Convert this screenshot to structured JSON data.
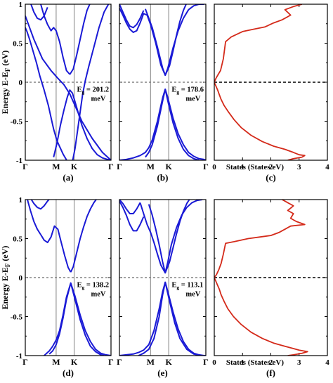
{
  "figure": {
    "ylabel": "Energy E-E",
    "ylabel_sub": "F",
    "ylabel_unit": "(eV)",
    "ylim": [
      -1,
      1
    ],
    "y_ticks": [
      "1",
      "0.5",
      "0",
      "-0.5",
      "-1"
    ],
    "k_ticks": [
      "Γ",
      "M",
      "K",
      "Γ"
    ],
    "dos_x_ticks": [
      "0",
      "1",
      "2",
      "3",
      "4"
    ],
    "dos_xlabel": "States (States/eV)",
    "colors": {
      "band": "#1a1ad6",
      "dos": "#d42a1a",
      "axis": "#000000",
      "kline": "#808080",
      "fermi": "#444444"
    }
  },
  "chart_data": [
    {
      "type": "line",
      "panel": "a",
      "label": "(a)",
      "kind": "band_structure",
      "gap": {
        "prefix": "E",
        "sub": "g",
        "value": "201.2",
        "unit": "meV"
      },
      "gap_ev": 0.2012,
      "k_path": [
        "Γ",
        "M",
        "K",
        "Γ"
      ],
      "ylim": [
        -1,
        1
      ],
      "series": [
        {
          "x": [
            0.0,
            0.1,
            0.2,
            0.3,
            0.38,
            0.45,
            0.52,
            0.58,
            0.66,
            0.78,
            0.9,
            1.0
          ],
          "y": [
            0.85,
            0.55,
            0.3,
            0.15,
            0.05,
            -0.03,
            -0.15,
            -0.3,
            -0.5,
            -0.72,
            -0.9,
            -1.0
          ]
        },
        {
          "x": [
            0.0,
            0.02,
            0.05,
            0.09,
            0.13,
            0.17,
            0.22,
            0.27,
            0.31,
            0.33,
            0.37,
            0.44,
            0.51,
            0.55,
            0.58,
            0.61,
            0.64,
            0.67,
            0.7,
            0.74,
            0.8,
            0.86,
            0.92,
            0.98,
            1.0
          ],
          "y": [
            0.7,
            0.65,
            0.55,
            0.4,
            0.25,
            0.08,
            -0.1,
            -0.3,
            -0.5,
            -0.6,
            -0.75,
            -0.92,
            -1.05,
            -1.02,
            -0.85,
            -0.62,
            -0.38,
            -0.15,
            0.02,
            0.2,
            0.45,
            0.7,
            0.9,
            1.02,
            1.05
          ]
        },
        {
          "x": [
            0.06,
            0.1,
            0.14,
            0.18,
            0.22,
            0.26
          ],
          "y": [
            1.02,
            0.9,
            0.82,
            0.8,
            0.85,
            0.96
          ]
        },
        {
          "x": [
            0.18,
            0.22,
            0.26,
            0.3,
            0.33,
            0.36,
            0.4,
            0.44,
            0.48,
            0.52
          ],
          "y": [
            1.0,
            0.85,
            0.74,
            0.66,
            0.7,
            0.66,
            0.52,
            0.32,
            0.15,
            0.1
          ]
        },
        {
          "x": [
            0.52,
            0.56,
            0.6,
            0.64,
            0.68,
            0.72,
            0.76
          ],
          "y": [
            0.1,
            0.17,
            0.35,
            0.55,
            0.75,
            0.92,
            1.02
          ]
        },
        {
          "x": [
            0.33,
            0.37,
            0.41,
            0.45,
            0.49,
            0.52,
            0.55,
            0.58,
            0.62,
            0.66,
            0.72,
            0.78,
            0.84,
            0.9,
            0.96,
            1.0
          ],
          "y": [
            -0.96,
            -0.78,
            -0.55,
            -0.36,
            -0.19,
            -0.1,
            -0.14,
            -0.25,
            -0.4,
            -0.55,
            -0.72,
            -0.85,
            -0.93,
            -0.97,
            -0.99,
            -1.0
          ]
        }
      ]
    },
    {
      "type": "line",
      "panel": "b",
      "label": "(b)",
      "kind": "band_structure",
      "gap": {
        "prefix": "E",
        "sub": "g",
        "value": "178.6",
        "unit": "meV"
      },
      "gap_ev": 0.1786,
      "k_path": [
        "Γ",
        "M",
        "K",
        "Γ"
      ],
      "ylim": [
        -1,
        1
      ],
      "series": [
        {
          "x": [
            0.0,
            0.04,
            0.08,
            0.12,
            0.16,
            0.2,
            0.24,
            0.28
          ],
          "y": [
            1.0,
            0.9,
            0.8,
            0.72,
            0.7,
            0.74,
            0.82,
            0.92
          ]
        },
        {
          "x": [
            0.0,
            0.04,
            0.08,
            0.12,
            0.16,
            0.2,
            0.24,
            0.28,
            0.32,
            0.36,
            0.42,
            0.48,
            0.53,
            0.58,
            0.62,
            0.66,
            0.7,
            0.74,
            0.78
          ],
          "y": [
            0.95,
            0.86,
            0.76,
            0.68,
            0.64,
            0.66,
            0.76,
            0.88,
            0.86,
            0.74,
            0.5,
            0.22,
            0.09,
            0.21,
            0.4,
            0.6,
            0.78,
            0.92,
            1.02
          ]
        },
        {
          "x": [
            0.3,
            0.34,
            0.38,
            0.44,
            0.5,
            0.53,
            0.56,
            0.62,
            0.68,
            0.74,
            0.8,
            0.86,
            0.92,
            0.98
          ],
          "y": [
            0.94,
            0.82,
            0.7,
            0.45,
            0.18,
            0.09,
            0.18,
            0.44,
            0.66,
            0.82,
            0.93,
            0.98,
            1.0,
            1.0
          ]
        },
        {
          "x": [
            0.0,
            0.08,
            0.16,
            0.24,
            0.3,
            0.34,
            0.38,
            0.44,
            0.5,
            0.53,
            0.56,
            0.62,
            0.68,
            0.74,
            0.8,
            0.86,
            0.92,
            0.98,
            1.0
          ],
          "y": [
            -1.0,
            -0.99,
            -0.97,
            -0.94,
            -0.9,
            -0.84,
            -0.74,
            -0.5,
            -0.2,
            -0.09,
            -0.2,
            -0.46,
            -0.66,
            -0.8,
            -0.9,
            -0.95,
            -0.98,
            -0.99,
            -1.0
          ]
        },
        {
          "x": [
            0.3,
            0.34,
            0.38,
            0.44,
            0.5,
            0.53,
            0.56,
            0.62,
            0.68,
            0.74,
            0.8,
            0.86,
            0.92
          ],
          "y": [
            -0.96,
            -0.9,
            -0.8,
            -0.56,
            -0.24,
            -0.09,
            -0.24,
            -0.52,
            -0.72,
            -0.86,
            -0.94,
            -0.98,
            -1.0
          ]
        }
      ]
    },
    {
      "type": "line",
      "panel": "c",
      "label": "(c)",
      "kind": "dos",
      "xlim": [
        0,
        4
      ],
      "ylim": [
        -1,
        1
      ],
      "series": [
        {
          "x": [
            3.1,
            2.8,
            2.5,
            2.7,
            2.4,
            2.1,
            1.8,
            1.4,
            1.0,
            0.6,
            0.4,
            0.32,
            0.22,
            0.14,
            0.06,
            0.0,
            0.06,
            0.12,
            0.18,
            0.24,
            0.35,
            0.5,
            0.7,
            0.95,
            1.3,
            1.7,
            2.1,
            2.5,
            2.8,
            3.0,
            3.2,
            3.1,
            2.8,
            2.6
          ],
          "y": [
            1.0,
            0.97,
            0.93,
            0.86,
            0.8,
            0.76,
            0.71,
            0.68,
            0.65,
            0.58,
            0.52,
            0.3,
            0.15,
            0.1,
            0.05,
            0.0,
            -0.05,
            -0.1,
            -0.16,
            -0.22,
            -0.3,
            -0.38,
            -0.48,
            -0.58,
            -0.68,
            -0.76,
            -0.82,
            -0.86,
            -0.9,
            -0.93,
            -0.94,
            -0.96,
            -0.98,
            -1.0
          ]
        }
      ]
    },
    {
      "type": "line",
      "panel": "d",
      "label": "(d)",
      "kind": "band_structure",
      "gap": {
        "prefix": "E",
        "sub": "g",
        "value": "138.2",
        "unit": "meV"
      },
      "gap_ev": 0.1382,
      "k_path": [
        "Γ",
        "M",
        "K",
        "Γ"
      ],
      "ylim": [
        -1,
        1
      ],
      "series": [
        {
          "x": [
            0.02,
            0.06,
            0.1,
            0.14,
            0.18
          ],
          "y": [
            1.02,
            0.86,
            0.72,
            0.62,
            0.55
          ]
        },
        {
          "x": [
            0.06,
            0.1,
            0.14,
            0.18,
            0.22,
            0.26,
            0.3
          ],
          "y": [
            1.02,
            0.95,
            0.9,
            0.88,
            0.92,
            0.98,
            1.03
          ]
        },
        {
          "x": [
            0.18,
            0.22,
            0.26,
            0.3,
            0.34,
            0.38,
            0.42,
            0.46,
            0.5,
            0.53
          ],
          "y": [
            0.55,
            0.48,
            0.45,
            0.52,
            0.66,
            0.62,
            0.45,
            0.28,
            0.13,
            0.07
          ]
        },
        {
          "x": [
            0.53,
            0.56,
            0.6,
            0.64,
            0.68,
            0.72,
            0.76,
            0.8,
            0.84
          ],
          "y": [
            0.07,
            0.14,
            0.32,
            0.5,
            0.65,
            0.78,
            0.88,
            0.96,
            1.02
          ]
        },
        {
          "x": [
            0.2,
            0.24,
            0.28,
            0.32,
            0.36,
            0.4,
            0.44,
            0.48,
            0.53,
            0.58,
            0.64,
            0.7,
            0.76,
            0.82,
            0.88,
            0.94,
            1.0
          ],
          "y": [
            -1.02,
            -0.98,
            -0.94,
            -0.88,
            -0.8,
            -0.68,
            -0.48,
            -0.25,
            -0.07,
            -0.24,
            -0.48,
            -0.68,
            -0.82,
            -0.92,
            -0.97,
            -0.99,
            -1.0
          ]
        },
        {
          "x": [
            0.28,
            0.32,
            0.36,
            0.4,
            0.44,
            0.48,
            0.53,
            0.58,
            0.64,
            0.7,
            0.76,
            0.82,
            0.88,
            0.92
          ],
          "y": [
            -0.98,
            -0.94,
            -0.86,
            -0.72,
            -0.52,
            -0.28,
            -0.07,
            -0.28,
            -0.54,
            -0.74,
            -0.88,
            -0.95,
            -0.99,
            -1.0
          ]
        }
      ]
    },
    {
      "type": "line",
      "panel": "e",
      "label": "(e)",
      "kind": "band_structure",
      "gap": {
        "prefix": "E",
        "sub": "g",
        "value": "113.1",
        "unit": "meV"
      },
      "gap_ev": 0.1131,
      "k_path": [
        "Γ",
        "M",
        "K",
        "Γ"
      ],
      "ylim": [
        -1,
        1
      ],
      "series": [
        {
          "x": [
            0.0,
            0.04,
            0.08,
            0.12,
            0.16,
            0.2,
            0.24
          ],
          "y": [
            1.0,
            0.95,
            0.88,
            0.82,
            0.82,
            0.88,
            0.96
          ]
        },
        {
          "x": [
            0.0,
            0.04,
            0.08,
            0.12,
            0.16,
            0.2,
            0.24,
            0.28
          ],
          "y": [
            0.98,
            0.9,
            0.8,
            0.68,
            0.6,
            0.6,
            0.68,
            0.78
          ]
        },
        {
          "x": [
            0.24,
            0.28,
            0.32,
            0.36,
            0.4,
            0.44,
            0.48,
            0.53
          ],
          "y": [
            0.96,
            0.82,
            0.68,
            0.58,
            0.45,
            0.3,
            0.16,
            0.06
          ]
        },
        {
          "x": [
            0.53,
            0.58,
            0.62,
            0.66,
            0.7,
            0.74,
            0.78,
            0.82
          ],
          "y": [
            0.06,
            0.2,
            0.38,
            0.56,
            0.72,
            0.85,
            0.95,
            1.02
          ]
        },
        {
          "x": [
            0.34,
            0.38,
            0.42,
            0.46,
            0.5,
            0.53,
            0.56,
            0.6,
            0.66,
            0.72,
            0.78,
            0.84,
            0.9,
            0.96
          ],
          "y": [
            0.94,
            0.8,
            0.62,
            0.42,
            0.2,
            0.06,
            0.2,
            0.42,
            0.64,
            0.8,
            0.9,
            0.96,
            0.99,
            1.0
          ]
        },
        {
          "x": [
            0.0,
            0.08,
            0.16,
            0.22,
            0.28,
            0.34,
            0.4,
            0.46,
            0.5,
            0.53,
            0.56,
            0.62,
            0.68,
            0.74,
            0.8,
            0.86,
            0.92,
            0.98,
            1.0
          ],
          "y": [
            -1.0,
            -0.99,
            -0.98,
            -0.96,
            -0.93,
            -0.86,
            -0.68,
            -0.4,
            -0.18,
            -0.06,
            -0.18,
            -0.44,
            -0.66,
            -0.82,
            -0.92,
            -0.97,
            -0.99,
            -1.0,
            -1.0
          ]
        },
        {
          "x": [
            0.22,
            0.28,
            0.34,
            0.4,
            0.46,
            0.5,
            0.53,
            0.58,
            0.64,
            0.7,
            0.78,
            0.86,
            0.94
          ],
          "y": [
            -1.0,
            -0.97,
            -0.92,
            -0.78,
            -0.5,
            -0.22,
            -0.06,
            -0.3,
            -0.58,
            -0.78,
            -0.92,
            -0.98,
            -1.0
          ]
        }
      ]
    },
    {
      "type": "line",
      "panel": "f",
      "label": "(f)",
      "kind": "dos",
      "xlim": [
        0,
        4
      ],
      "ylim": [
        -1,
        1
      ],
      "series": [
        {
          "x": [
            2.4,
            2.6,
            2.8,
            2.6,
            2.8,
            2.7,
            2.9,
            3.2,
            2.7,
            2.5,
            2.3,
            2.0,
            1.6,
            1.2,
            0.7,
            0.4,
            0.32,
            0.24,
            0.16,
            0.08,
            0.0,
            0.06,
            0.12,
            0.18,
            0.24,
            0.34,
            0.48,
            0.68,
            0.95,
            1.3,
            1.7,
            2.1,
            2.5,
            2.8,
            3.0,
            3.3,
            3.1,
            2.8,
            2.6
          ],
          "y": [
            1.0,
            0.96,
            0.92,
            0.86,
            0.82,
            0.76,
            0.72,
            0.68,
            0.66,
            0.62,
            0.58,
            0.54,
            0.52,
            0.5,
            0.46,
            0.44,
            0.3,
            0.18,
            0.1,
            0.04,
            0.0,
            -0.05,
            -0.1,
            -0.15,
            -0.22,
            -0.3,
            -0.4,
            -0.5,
            -0.6,
            -0.7,
            -0.78,
            -0.84,
            -0.88,
            -0.91,
            -0.93,
            -0.95,
            -0.97,
            -0.99,
            -1.0
          ]
        }
      ]
    }
  ]
}
